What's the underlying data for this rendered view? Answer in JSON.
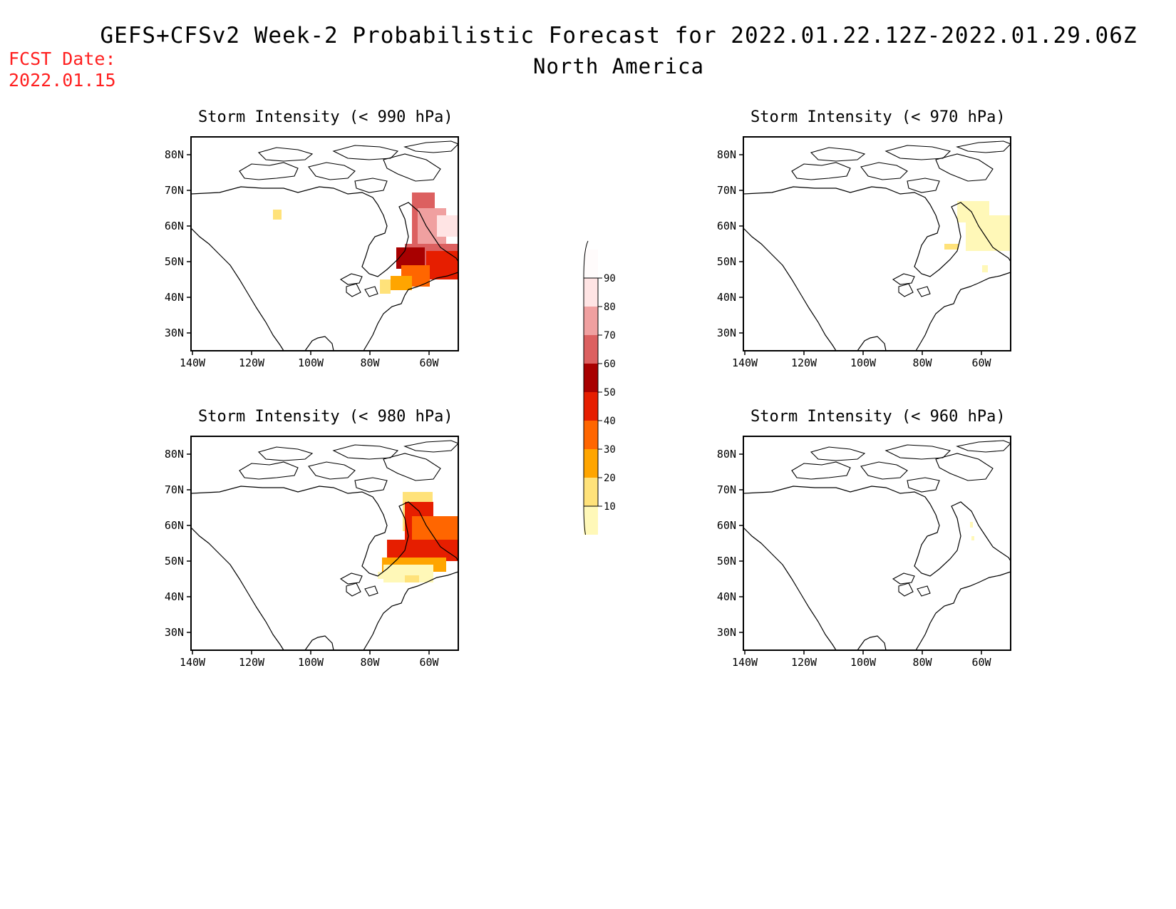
{
  "header": {
    "title": "GEFS+CFSv2 Week-2 Probabilistic Forecast for 2022.01.22.12Z-2022.01.29.06Z",
    "subtitle": "North America",
    "fcst_label": "FCST Date:",
    "fcst_date": "2022.01.15"
  },
  "panels": [
    {
      "title": "Storm Intensity (< 990 hPa)"
    },
    {
      "title": "Storm Intensity (< 970 hPa)"
    },
    {
      "title": "Storm Intensity (< 980 hPa)"
    },
    {
      "title": "Storm Intensity (< 960 hPa)"
    }
  ],
  "axes": {
    "lat_labels": [
      "80N",
      "70N",
      "60N",
      "50N",
      "40N",
      "30N"
    ],
    "lon_labels": [
      "140W",
      "120W",
      "100W",
      "80W",
      "60W"
    ]
  },
  "colorbar": {
    "levels": [
      "10",
      "20",
      "30",
      "40",
      "50",
      "60",
      "70",
      "80",
      "90"
    ],
    "colors": [
      "#fff8b8",
      "#ffe27a",
      "#ffa500",
      "#ff6600",
      "#e61e00",
      "#a80000",
      "#dc6060",
      "#f0a0a0",
      "#ffe4e4",
      "#fffbfb"
    ]
  }
}
